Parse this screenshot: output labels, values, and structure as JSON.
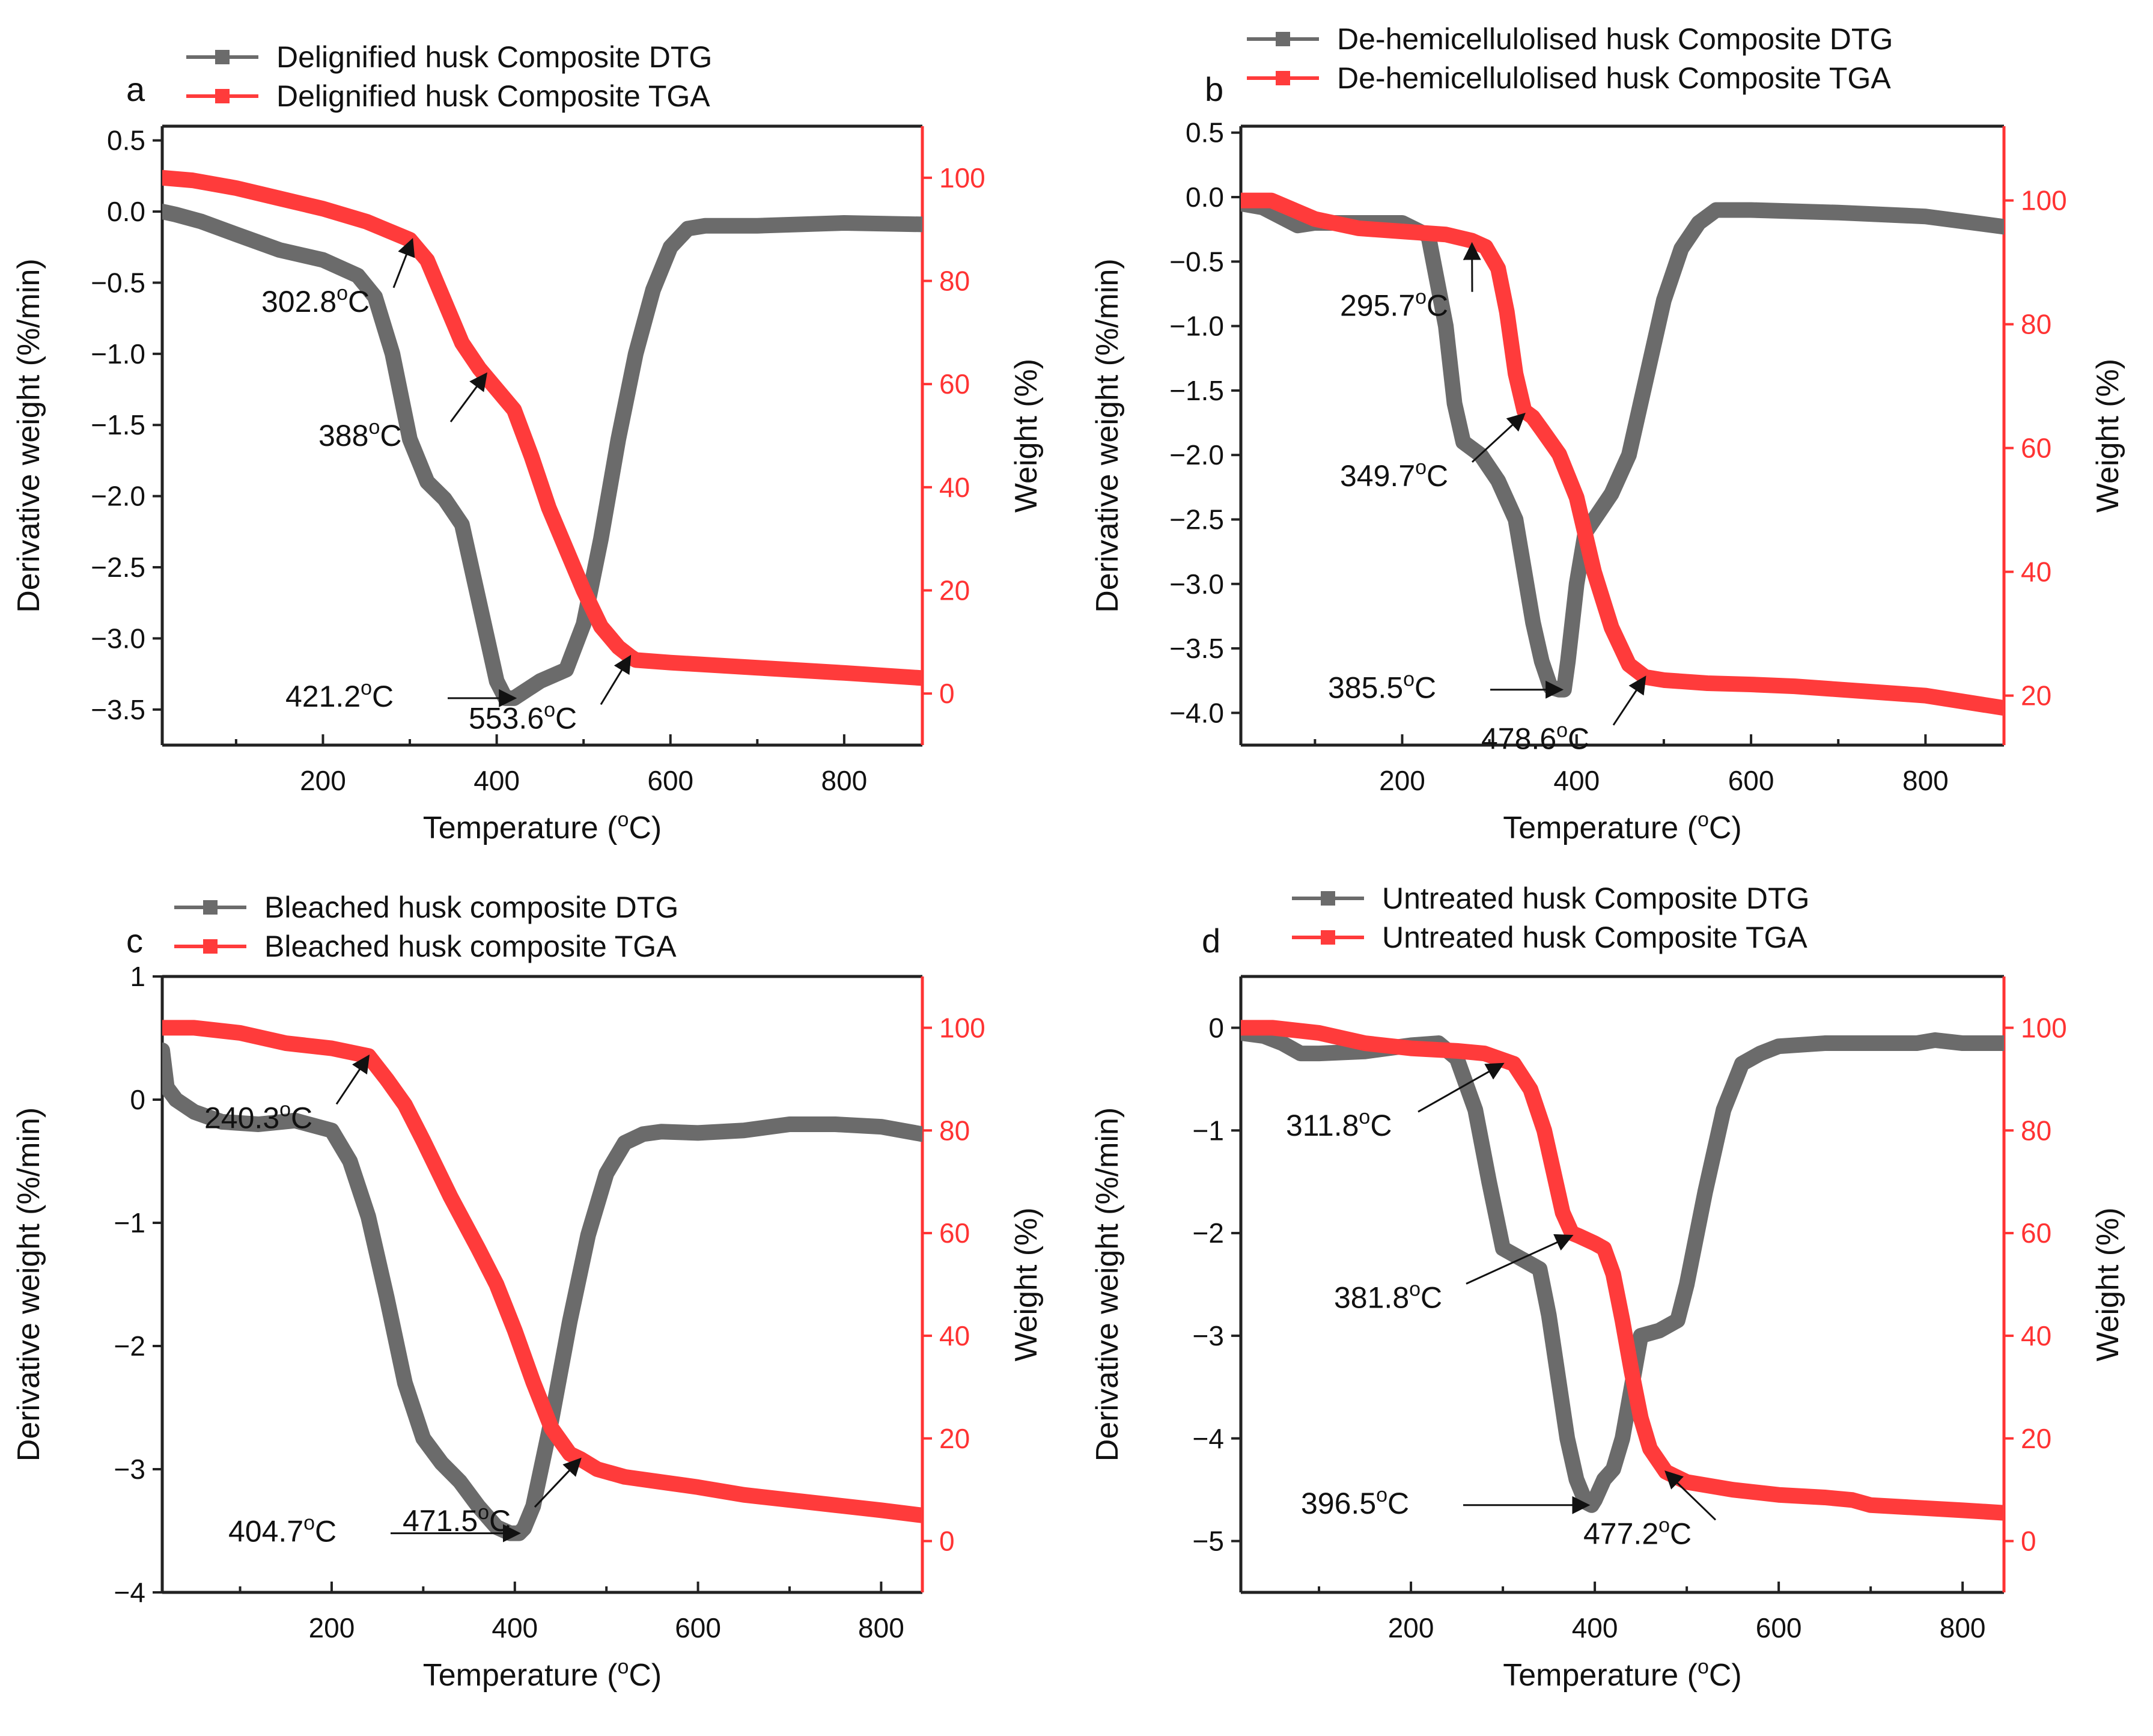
{
  "colors": {
    "dtg": "#6b6b6b",
    "tga": "#ff3b3b",
    "axis": "#222222",
    "right_axis": "#ff3333"
  },
  "chart_data": [
    {
      "panel": "a",
      "type": "line",
      "xlabel": "Temperature (",
      "xlabel_sup": "o",
      "xlabel_end": "C)",
      "ylabel": "Derivative weight (%/min)",
      "y2label": "Weight (%)",
      "xlim": [
        15,
        890
      ],
      "ylim": [
        -3.75,
        0.6
      ],
      "y2lim": [
        -10,
        110
      ],
      "xticks": [
        200,
        400,
        600,
        800
      ],
      "yticks": [
        0.5,
        0.0,
        -0.5,
        -1.0,
        -1.5,
        -2.0,
        -2.5,
        -3.0,
        -3.5
      ],
      "ytick_labels": [
        "0.5",
        "0.0",
        "−0.5",
        "−1.0",
        "−1.5",
        "−2.0",
        "−2.5",
        "−3.0",
        "−3.5"
      ],
      "y2ticks": [
        0,
        20,
        40,
        60,
        80,
        100
      ],
      "series": [
        {
          "name": "Delignified husk Composite DTG",
          "x": [
            15,
            30,
            60,
            100,
            150,
            200,
            240,
            260,
            280,
            300,
            320,
            340,
            360,
            380,
            400,
            410,
            420,
            430,
            450,
            480,
            500,
            520,
            540,
            560,
            580,
            600,
            620,
            640,
            700,
            800,
            890
          ],
          "y": [
            0.0,
            -0.02,
            -0.07,
            -0.16,
            -0.27,
            -0.34,
            -0.45,
            -0.6,
            -1.0,
            -1.6,
            -1.9,
            -2.02,
            -2.2,
            -2.75,
            -3.3,
            -3.42,
            -3.42,
            -3.38,
            -3.3,
            -3.22,
            -2.9,
            -2.3,
            -1.6,
            -1.0,
            -0.55,
            -0.25,
            -0.12,
            -0.1,
            -0.1,
            -0.08,
            -0.09
          ]
        },
        {
          "name": "Delignified husk Composite TGA",
          "x": [
            15,
            50,
            100,
            150,
            200,
            250,
            300,
            320,
            340,
            360,
            380,
            400,
            420,
            440,
            460,
            480,
            500,
            520,
            540,
            553.6,
            560,
            600,
            650,
            700,
            800,
            890
          ],
          "y": [
            100,
            99.5,
            98,
            96,
            94,
            91.5,
            88,
            84,
            76,
            68,
            63,
            59,
            55,
            46,
            36,
            28,
            20,
            13,
            9,
            7.2,
            6.5,
            6.0,
            5.5,
            5.0,
            4.0,
            3.0
          ]
        }
      ],
      "legend": [
        "Delignified husk Composite DTG",
        "Delignified husk Composite TGA"
      ],
      "annotations": [
        {
          "text": "302.8",
          "sup": "o",
          "end": "C",
          "x": 302.8,
          "y2": 88,
          "tx": 165,
          "ty": 0.9
        },
        {
          "text": "388",
          "sup": "o",
          "end": "C",
          "x": 388,
          "y2": 62,
          "tx": 260,
          "ty": 2.1
        },
        {
          "text": "553.6",
          "sup": "o",
          "end": "C",
          "x": 553.6,
          "y2": 7.2,
          "tx": 510,
          "ty": 1.8
        },
        {
          "text": "421.2",
          "sup": "o",
          "end": "C",
          "x": 421.2,
          "y": -3.42,
          "tx": 205,
          "ty": 0.3
        }
      ]
    },
    {
      "panel": "b",
      "type": "line",
      "xlabel": "Temperature (",
      "xlabel_sup": "o",
      "xlabel_end": "C)",
      "ylabel": "Derivative weight (%/min)",
      "y2label": "Weight (%)",
      "xlim": [
        15,
        890
      ],
      "ylim": [
        -4.25,
        0.55
      ],
      "y2lim": [
        12,
        112
      ],
      "xticks": [
        200,
        400,
        600,
        800
      ],
      "yticks": [
        0.5,
        0.0,
        -0.5,
        -1.0,
        -1.5,
        -2.0,
        -2.5,
        -3.0,
        -3.5,
        -4.0
      ],
      "ytick_labels": [
        "0.5",
        "0.0",
        "−0.5",
        "−1.0",
        "−1.5",
        "−2.0",
        "−2.5",
        "−3.0",
        "−3.5",
        "−4.0"
      ],
      "y2ticks": [
        20,
        40,
        60,
        80,
        100
      ],
      "series": [
        {
          "name": "De-hemicellulolised husk Composite DTG",
          "x": [
            15,
            40,
            60,
            80,
            100,
            150,
            200,
            230,
            250,
            260,
            270,
            290,
            310,
            330,
            340,
            350,
            360,
            370,
            380,
            385.5,
            390,
            400,
            410,
            420,
            440,
            460,
            480,
            500,
            520,
            540,
            560,
            600,
            700,
            800,
            890
          ],
          "y": [
            -0.05,
            -0.08,
            -0.15,
            -0.22,
            -0.2,
            -0.2,
            -0.2,
            -0.3,
            -1.0,
            -1.6,
            -1.9,
            -2.0,
            -2.2,
            -2.5,
            -2.9,
            -3.3,
            -3.6,
            -3.8,
            -3.82,
            -3.82,
            -3.6,
            -3.0,
            -2.6,
            -2.5,
            -2.3,
            -2.0,
            -1.4,
            -0.8,
            -0.4,
            -0.2,
            -0.1,
            -0.1,
            -0.12,
            -0.15,
            -0.23
          ]
        },
        {
          "name": "De-hemicellulolised husk Composite TGA",
          "x": [
            15,
            50,
            100,
            150,
            200,
            250,
            280,
            295.7,
            310,
            320,
            330,
            340,
            349.7,
            360,
            380,
            400,
            420,
            440,
            460,
            478.6,
            500,
            550,
            600,
            650,
            700,
            800,
            890
          ],
          "y": [
            100,
            100,
            97,
            95.5,
            95,
            94.5,
            93.5,
            92.5,
            89,
            82,
            72,
            66,
            65,
            63,
            59,
            52,
            40,
            31,
            25,
            23,
            22.5,
            22,
            21.8,
            21.5,
            21,
            20,
            18
          ]
        }
      ],
      "legend": [
        "De-hemicellulolised husk Composite DTG",
        "De-hemicellulolised husk Composite TGA"
      ],
      "annotations": [
        {
          "text": "295.7",
          "sup": "o",
          "end": "C",
          "x": 280,
          "y2": 93,
          "tx": 165,
          "ty": 2.1
        },
        {
          "text": "349.7",
          "sup": "o",
          "end": "C",
          "x": 340,
          "y2": 65.5,
          "tx": 165,
          "ty": 1.65
        },
        {
          "text": "478.6",
          "sup": "o",
          "end": "C",
          "x": 478.6,
          "y2": 23,
          "tx": 400,
          "ty": 1.7
        },
        {
          "text": "385.5",
          "sup": "o",
          "end": "C",
          "x": 383,
          "y": -3.82,
          "tx": 145,
          "ty": 0.3
        }
      ]
    },
    {
      "panel": "c",
      "type": "line",
      "xlabel": "Temperature (",
      "xlabel_sup": "o",
      "xlabel_end": "C)",
      "ylabel": "Derivative weight (%/min)",
      "y2label": "Weight (%)",
      "xlim": [
        15,
        845
      ],
      "ylim": [
        -4.0,
        1.0
      ],
      "y2lim": [
        -10,
        110
      ],
      "xticks": [
        200,
        400,
        600,
        800
      ],
      "yticks": [
        1,
        0,
        -1,
        -2,
        -3,
        -4
      ],
      "ytick_labels": [
        "1",
        "0",
        "−1",
        "−2",
        "−3",
        "−4"
      ],
      "y2ticks": [
        0,
        20,
        40,
        60,
        80,
        100
      ],
      "series": [
        {
          "name": "Bleached husk composite DTG",
          "x": [
            15,
            20,
            30,
            50,
            80,
            120,
            160,
            200,
            220,
            240,
            260,
            280,
            300,
            320,
            340,
            360,
            380,
            395,
            404.7,
            410,
            420,
            440,
            460,
            480,
            500,
            520,
            540,
            560,
            600,
            650,
            700,
            750,
            800,
            845
          ],
          "y": [
            0.4,
            0.1,
            0.0,
            -0.1,
            -0.18,
            -0.2,
            -0.17,
            -0.25,
            -0.5,
            -0.95,
            -1.6,
            -2.3,
            -2.75,
            -2.95,
            -3.1,
            -3.3,
            -3.47,
            -3.52,
            -3.52,
            -3.48,
            -3.3,
            -2.6,
            -1.8,
            -1.1,
            -0.6,
            -0.35,
            -0.28,
            -0.26,
            -0.27,
            -0.25,
            -0.2,
            -0.2,
            -0.22,
            -0.28
          ]
        },
        {
          "name": "Bleached husk composite TGA",
          "x": [
            15,
            50,
            100,
            150,
            200,
            240.3,
            260,
            280,
            300,
            330,
            360,
            380,
            400,
            420,
            440,
            460,
            471.5,
            490,
            520,
            560,
            600,
            650,
            700,
            750,
            800,
            845
          ],
          "y": [
            100,
            100,
            99,
            97,
            96,
            94.5,
            90,
            85,
            78,
            67,
            57,
            50,
            41,
            31,
            22,
            17,
            16,
            14,
            12.5,
            11.5,
            10.5,
            9,
            8,
            7,
            6,
            5
          ]
        }
      ],
      "legend": [
        "Bleached husk composite DTG",
        "Bleached husk composite TGA"
      ],
      "annotations": [
        {
          "text": "240.3",
          "sup": "o",
          "end": "C",
          "x": 240.3,
          "y2": 94.5,
          "tx": 70,
          "ty": 2.0
        },
        {
          "text": "471.5",
          "sup": "o",
          "end": "C",
          "x": 471.5,
          "y2": 16,
          "tx": 400,
          "ty": 1.8
        },
        {
          "text": "404.7",
          "sup": "o",
          "end": "C",
          "x": 404.7,
          "y": -3.52,
          "tx": 110,
          "ty": 0.3
        }
      ]
    },
    {
      "panel": "d",
      "type": "line",
      "xlabel": "Temperature (",
      "xlabel_sup": "o",
      "xlabel_end": "C)",
      "ylabel": "Derivative weight (%/min)",
      "y2label": "Weight (%)",
      "xlim": [
        15,
        845
      ],
      "ylim": [
        -5.5,
        0.5
      ],
      "y2lim": [
        -10,
        110
      ],
      "xticks": [
        200,
        400,
        600,
        800
      ],
      "yticks": [
        0,
        -1,
        -2,
        -3,
        -4,
        -5
      ],
      "ytick_labels": [
        "0",
        "−1",
        "−2",
        "−3",
        "−4",
        "−5"
      ],
      "y2ticks": [
        0,
        20,
        40,
        60,
        80,
        100
      ],
      "series": [
        {
          "name": "Untreated husk Composite DTG",
          "x": [
            15,
            40,
            60,
            80,
            100,
            150,
            200,
            230,
            250,
            270,
            285,
            300,
            320,
            340,
            350,
            360,
            370,
            380,
            390,
            396.5,
            400,
            410,
            420,
            430,
            440,
            450,
            470,
            490,
            500,
            520,
            540,
            560,
            580,
            600,
            650,
            700,
            750,
            770,
            800,
            845
          ],
          "y": [
            -0.05,
            -0.08,
            -0.15,
            -0.25,
            -0.25,
            -0.23,
            -0.17,
            -0.15,
            -0.3,
            -0.8,
            -1.5,
            -2.15,
            -2.25,
            -2.35,
            -2.8,
            -3.4,
            -4.0,
            -4.4,
            -4.62,
            -4.65,
            -4.6,
            -4.4,
            -4.3,
            -4.0,
            -3.5,
            -3.0,
            -2.95,
            -2.85,
            -2.5,
            -1.6,
            -0.8,
            -0.35,
            -0.25,
            -0.18,
            -0.15,
            -0.15,
            -0.15,
            -0.12,
            -0.15,
            -0.15
          ]
        },
        {
          "name": "Untreated husk Composite TGA",
          "x": [
            15,
            50,
            100,
            150,
            200,
            250,
            280,
            311.8,
            330,
            345,
            355,
            365,
            375,
            381.8,
            400,
            410,
            420,
            430,
            440,
            450,
            460,
            477.2,
            500,
            550,
            600,
            650,
            680,
            700,
            750,
            800,
            845
          ],
          "y": [
            100,
            100,
            99,
            97,
            96,
            95.5,
            95,
            93,
            88,
            80,
            72,
            64,
            60,
            59.5,
            58,
            57,
            52,
            43,
            33,
            24,
            18,
            13.5,
            11.5,
            10,
            9,
            8.5,
            8,
            7,
            6.5,
            6,
            5.5
          ]
        }
      ],
      "legend": [
        "Untreated husk Composite DTG",
        "Untreated husk Composite TGA"
      ],
      "annotations": [
        {
          "text": "311.8",
          "sup": "o",
          "end": "C",
          "x": 300,
          "y2": 93,
          "tx": 75,
          "ty": 2.1
        },
        {
          "text": "381.8",
          "sup": "o",
          "end": "C",
          "x": 375,
          "y2": 59.5,
          "tx": 155,
          "ty": 1.85
        },
        {
          "text": "477.2",
          "sup": "o",
          "end": "C",
          "x": 477.2,
          "y2": 13.5,
          "tx": 570,
          "ty": 1.95
        },
        {
          "text": "396.5",
          "sup": "o",
          "end": "C",
          "x": 393,
          "y": -4.65,
          "tx": 100,
          "ty": 0.3
        }
      ]
    }
  ]
}
